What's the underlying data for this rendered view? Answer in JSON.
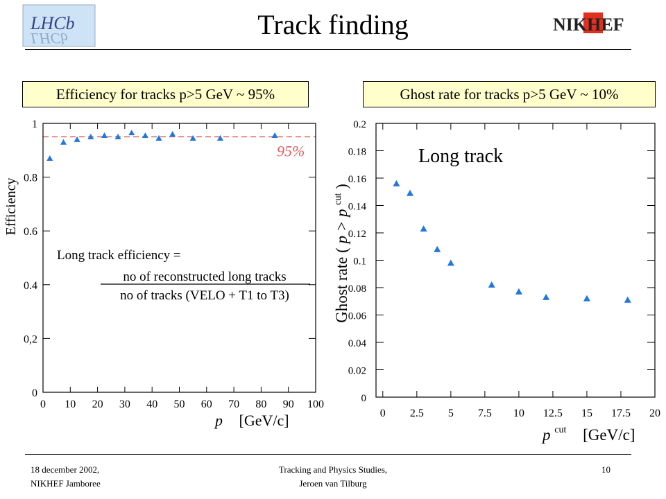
{
  "slide": {
    "title": "Track finding",
    "logo_left_text": "LHCb",
    "logo_right_text": "NIKHEF",
    "footer_left_line1": "18 december 2002,",
    "footer_left_line2": "NIKHEF Jamboree",
    "footer_center_line1": "Tracking and Physics Studies,",
    "footer_center_line2": "Jeroen van Tilburg",
    "page_number": "10",
    "box_left": "Efficiency for tracks p>5 GeV ~ 95%",
    "box_right": "Ghost rate for tracks p>5 GeV ~ 10%"
  },
  "chart_data": [
    {
      "type": "scatter",
      "ylabel": "Efficiency",
      "xlabel_var": "p",
      "xlabel_unit": "[GeV/c]",
      "xlim": [
        0,
        100
      ],
      "ylim": [
        0,
        1
      ],
      "x_ticks": [
        "0",
        "10",
        "20",
        "30",
        "40",
        "50",
        "60",
        "70",
        "80",
        "90",
        "100"
      ],
      "y_ticks": [
        "0",
        "0,2",
        "0.4",
        "0.6",
        "0.8",
        "1"
      ],
      "reference_line": {
        "value": 0.95,
        "label": "95%",
        "color": "#e06060"
      },
      "annotation_line1": "Long track efficiency =",
      "annotation_numerator": "no of reconstructed long tracks",
      "annotation_denominator": "no of tracks (VELO + T1 to T3)",
      "marker_color": "#2277dd",
      "x": [
        2.5,
        7.5,
        12.5,
        17.5,
        22.5,
        27.5,
        32.5,
        37.5,
        42.5,
        47.5,
        55,
        65,
        85
      ],
      "y": [
        0.87,
        0.93,
        0.94,
        0.95,
        0.955,
        0.95,
        0.965,
        0.955,
        0.945,
        0.96,
        0.945,
        0.945,
        0.955
      ]
    },
    {
      "type": "scatter",
      "ylabel_prefix": "Ghost rate (",
      "ylabel_var": "p > p",
      "ylabel_sup": "cut",
      "ylabel_suffix": ")",
      "xlabel_var": "p",
      "xlabel_sup": "cut",
      "xlabel_unit": "[GeV/c]",
      "title_in_plot": "Long track",
      "xlim": [
        -0.5,
        20
      ],
      "ylim": [
        0,
        0.2
      ],
      "x_ticks": [
        "0",
        "2.5",
        "5",
        "7.5",
        "10",
        "12.5",
        "15",
        "17.5",
        "20"
      ],
      "y_ticks": [
        "0",
        "0.02",
        "0.04",
        "0.06",
        "0.08",
        "0.1",
        "0.12",
        "0.14",
        "0.16",
        "0.18",
        "0.2"
      ],
      "marker_color": "#2277dd",
      "x": [
        1,
        2,
        3,
        4,
        5,
        8,
        10,
        12,
        15,
        18
      ],
      "y": [
        0.156,
        0.149,
        0.123,
        0.108,
        0.098,
        0.082,
        0.077,
        0.073,
        0.072,
        0.071
      ]
    }
  ]
}
